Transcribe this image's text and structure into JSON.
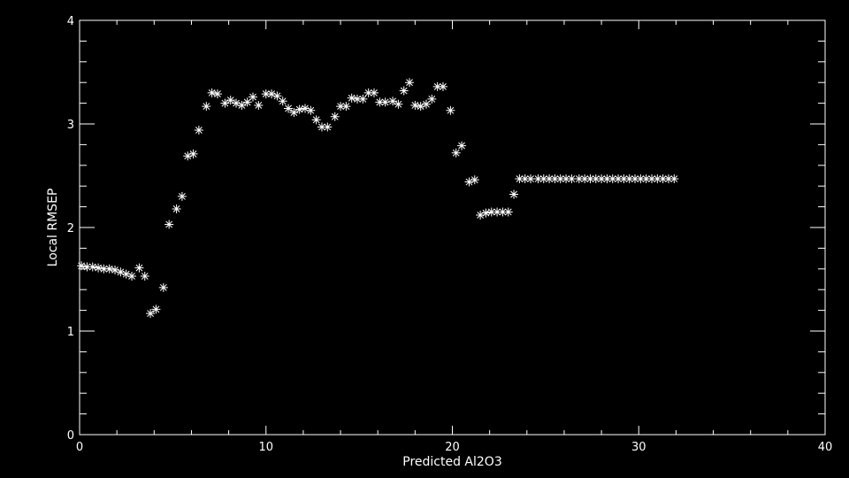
{
  "chart_data": {
    "type": "scatter",
    "title": "",
    "xlabel": "Predicted Al2O3",
    "ylabel": "Local RMSEP",
    "xlim": [
      0,
      40
    ],
    "ylim": [
      0,
      4
    ],
    "x_ticks": [
      0,
      10,
      20,
      30,
      40
    ],
    "y_ticks": [
      0,
      1,
      2,
      3,
      4
    ],
    "x_tick_labels": [
      "0",
      "10",
      "20",
      "30",
      "40"
    ],
    "y_tick_labels": [
      "0",
      "1",
      "2",
      "3",
      "4"
    ],
    "grid": false,
    "legend": "none",
    "marker": "asterisk",
    "colors": {
      "background": "#000000",
      "foreground": "#ffffff"
    },
    "series": [
      {
        "x": [
          0.1,
          0.4,
          0.7,
          1.0,
          1.3,
          1.6,
          1.9,
          2.2,
          2.5,
          2.8,
          3.2,
          3.5,
          3.8,
          4.1,
          4.5,
          4.8,
          5.2,
          5.5,
          5.8,
          6.1,
          6.4,
          6.8,
          7.1,
          7.4,
          7.8,
          8.1,
          8.4,
          8.7,
          9.0,
          9.3,
          9.6,
          10.0,
          10.3,
          10.6,
          10.9,
          11.2,
          11.5,
          11.8,
          12.1,
          12.4,
          12.7,
          13.0,
          13.3,
          13.7,
          14.0,
          14.3,
          14.6,
          14.9,
          15.2,
          15.5,
          15.8,
          16.1,
          16.4,
          16.8,
          17.1,
          17.4,
          17.7,
          18.0,
          18.3,
          18.6,
          18.9,
          19.2,
          19.5,
          19.9,
          20.2,
          20.5,
          20.9,
          21.2,
          21.5,
          21.8,
          22.1,
          22.4,
          22.7,
          23.0,
          23.3,
          23.6,
          23.9,
          24.2,
          24.6,
          24.9,
          25.2,
          25.5,
          25.8,
          26.1,
          26.4,
          26.8,
          27.1,
          27.4,
          27.7,
          28.0,
          28.3,
          28.6,
          28.9,
          29.2,
          29.5,
          29.8,
          30.1,
          30.4,
          30.7,
          31.0,
          31.3,
          31.6,
          31.9
        ],
        "y": [
          1.63,
          1.62,
          1.62,
          1.61,
          1.6,
          1.6,
          1.59,
          1.57,
          1.55,
          1.53,
          1.61,
          1.53,
          1.17,
          1.21,
          1.42,
          2.03,
          2.18,
          2.3,
          2.69,
          2.71,
          2.94,
          3.17,
          3.3,
          3.29,
          3.2,
          3.23,
          3.2,
          3.18,
          3.21,
          3.26,
          3.18,
          3.29,
          3.29,
          3.27,
          3.22,
          3.15,
          3.11,
          3.14,
          3.15,
          3.13,
          3.04,
          2.97,
          2.97,
          3.07,
          3.17,
          3.17,
          3.25,
          3.24,
          3.24,
          3.3,
          3.3,
          3.21,
          3.21,
          3.22,
          3.19,
          3.32,
          3.4,
          3.18,
          3.17,
          3.19,
          3.24,
          3.36,
          3.36,
          3.13,
          2.72,
          2.79,
          2.44,
          2.46,
          2.12,
          2.14,
          2.15,
          2.15,
          2.15,
          2.15,
          2.32,
          2.47,
          2.47,
          2.47,
          2.47,
          2.47,
          2.47,
          2.47,
          2.47,
          2.47,
          2.47,
          2.47,
          2.47,
          2.47,
          2.47,
          2.47,
          2.47,
          2.47,
          2.47,
          2.47,
          2.47,
          2.47,
          2.47,
          2.47,
          2.47,
          2.47,
          2.47,
          2.47,
          2.47
        ]
      }
    ]
  }
}
